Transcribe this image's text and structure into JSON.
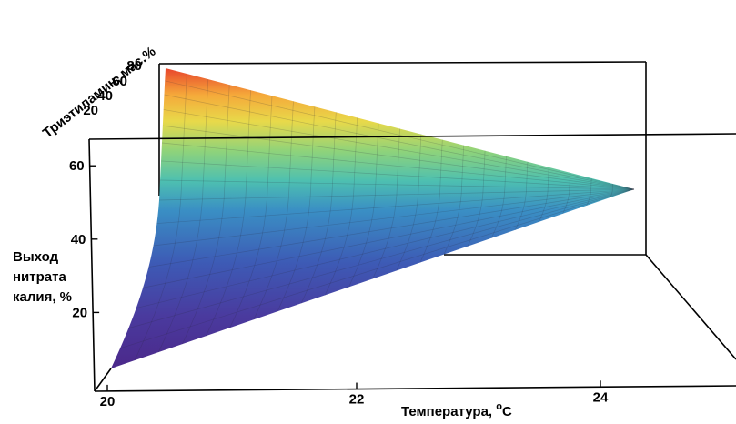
{
  "chart_data": {
    "type": "surface3d",
    "x_axis": {
      "label": "Температура, °С",
      "label_main": "Температура, ",
      "label_sup": "o",
      "label_unit": "С",
      "ticks": [
        "20",
        "22",
        "24"
      ],
      "range": [
        20,
        24.3
      ]
    },
    "y_axis": {
      "label": "Триэтиламин, мас.%",
      "ticks": [
        "20",
        "40",
        "60",
        "80"
      ],
      "range": [
        20,
        80
      ]
    },
    "z_axis": {
      "label_lines": [
        "Выход",
        "нитрата",
        "калия, %"
      ],
      "ticks": [
        "20",
        "40",
        "60"
      ],
      "range": [
        0,
        68
      ]
    },
    "surface_corners": [
      {
        "temperature": 20.0,
        "triethylamine": 20,
        "yield": 5
      },
      {
        "temperature": 20.0,
        "triethylamine": 80,
        "yield": 66
      },
      {
        "temperature": 24.3,
        "triethylamine": 50,
        "yield": 52
      }
    ],
    "colormap": [
      "#4b2a8c",
      "#3d4fb0",
      "#3a8fc4",
      "#4ec0b0",
      "#8fd37a",
      "#e8d94a",
      "#f5a93a",
      "#e8452c"
    ]
  }
}
